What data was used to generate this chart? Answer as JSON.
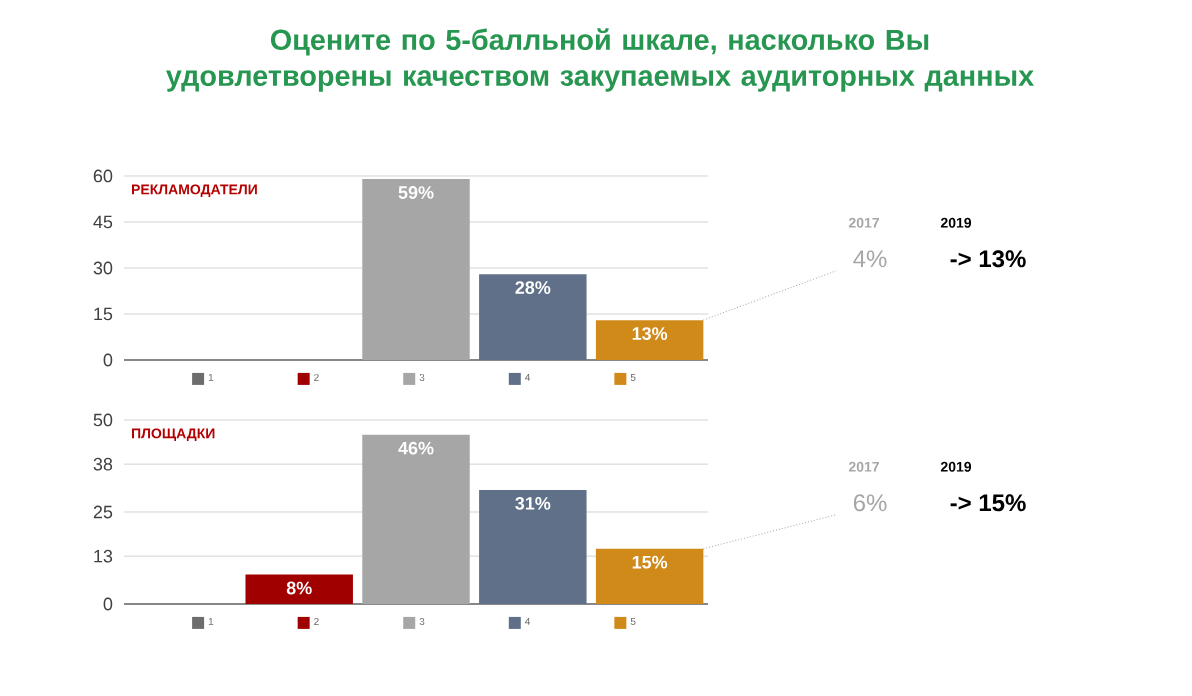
{
  "chart_data": [
    {
      "type": "bar",
      "title": "Оцените по 5-балльной шкале, насколько Вы удовлетворены качеством закупаемых аудиторных данных",
      "subtitle": "РЕКЛАМОДАТЕЛИ",
      "categories": [
        null
      ],
      "ylim": [
        0,
        60
      ],
      "yticks": [
        0,
        15,
        30,
        45,
        60
      ],
      "grid": "y",
      "legend": "bottom",
      "series": [
        {
          "name": "1",
          "color": "#6d6d6d",
          "values": [
            null
          ]
        },
        {
          "name": "2",
          "color": "#a00000",
          "values": [
            null
          ]
        },
        {
          "name": "3",
          "color": "#a6a6a6",
          "values": [
            59
          ],
          "value_labels": [
            "59%"
          ]
        },
        {
          "name": "4",
          "color": "#5f7088",
          "values": [
            28
          ],
          "value_labels": [
            "28%"
          ]
        },
        {
          "name": "5",
          "color": "#d08a1a",
          "values": [
            13
          ],
          "value_labels": [
            "13%"
          ]
        }
      ],
      "annotations": [
        "2017",
        "2019",
        "4%",
        "-> 13%"
      ]
    },
    {
      "type": "bar",
      "subtitle": "ПЛОЩАДКИ",
      "categories": [
        null
      ],
      "ylim": [
        0,
        50
      ],
      "yticks": [
        0,
        13,
        25,
        38,
        50
      ],
      "grid": "y",
      "legend": "bottom",
      "series": [
        {
          "name": "1",
          "color": "#6d6d6d",
          "values": [
            null
          ]
        },
        {
          "name": "2",
          "color": "#a00000",
          "values": [
            8
          ],
          "value_labels": [
            "8%"
          ]
        },
        {
          "name": "3",
          "color": "#a6a6a6",
          "values": [
            46
          ],
          "value_labels": [
            "46%"
          ]
        },
        {
          "name": "4",
          "color": "#5f7088",
          "values": [
            31
          ],
          "value_labels": [
            "31%"
          ]
        },
        {
          "name": "5",
          "color": "#d08a1a",
          "values": [
            15
          ],
          "value_labels": [
            "15%"
          ]
        }
      ],
      "annotations": [
        "2017",
        "2019",
        "6%",
        "-> 15%"
      ]
    }
  ]
}
